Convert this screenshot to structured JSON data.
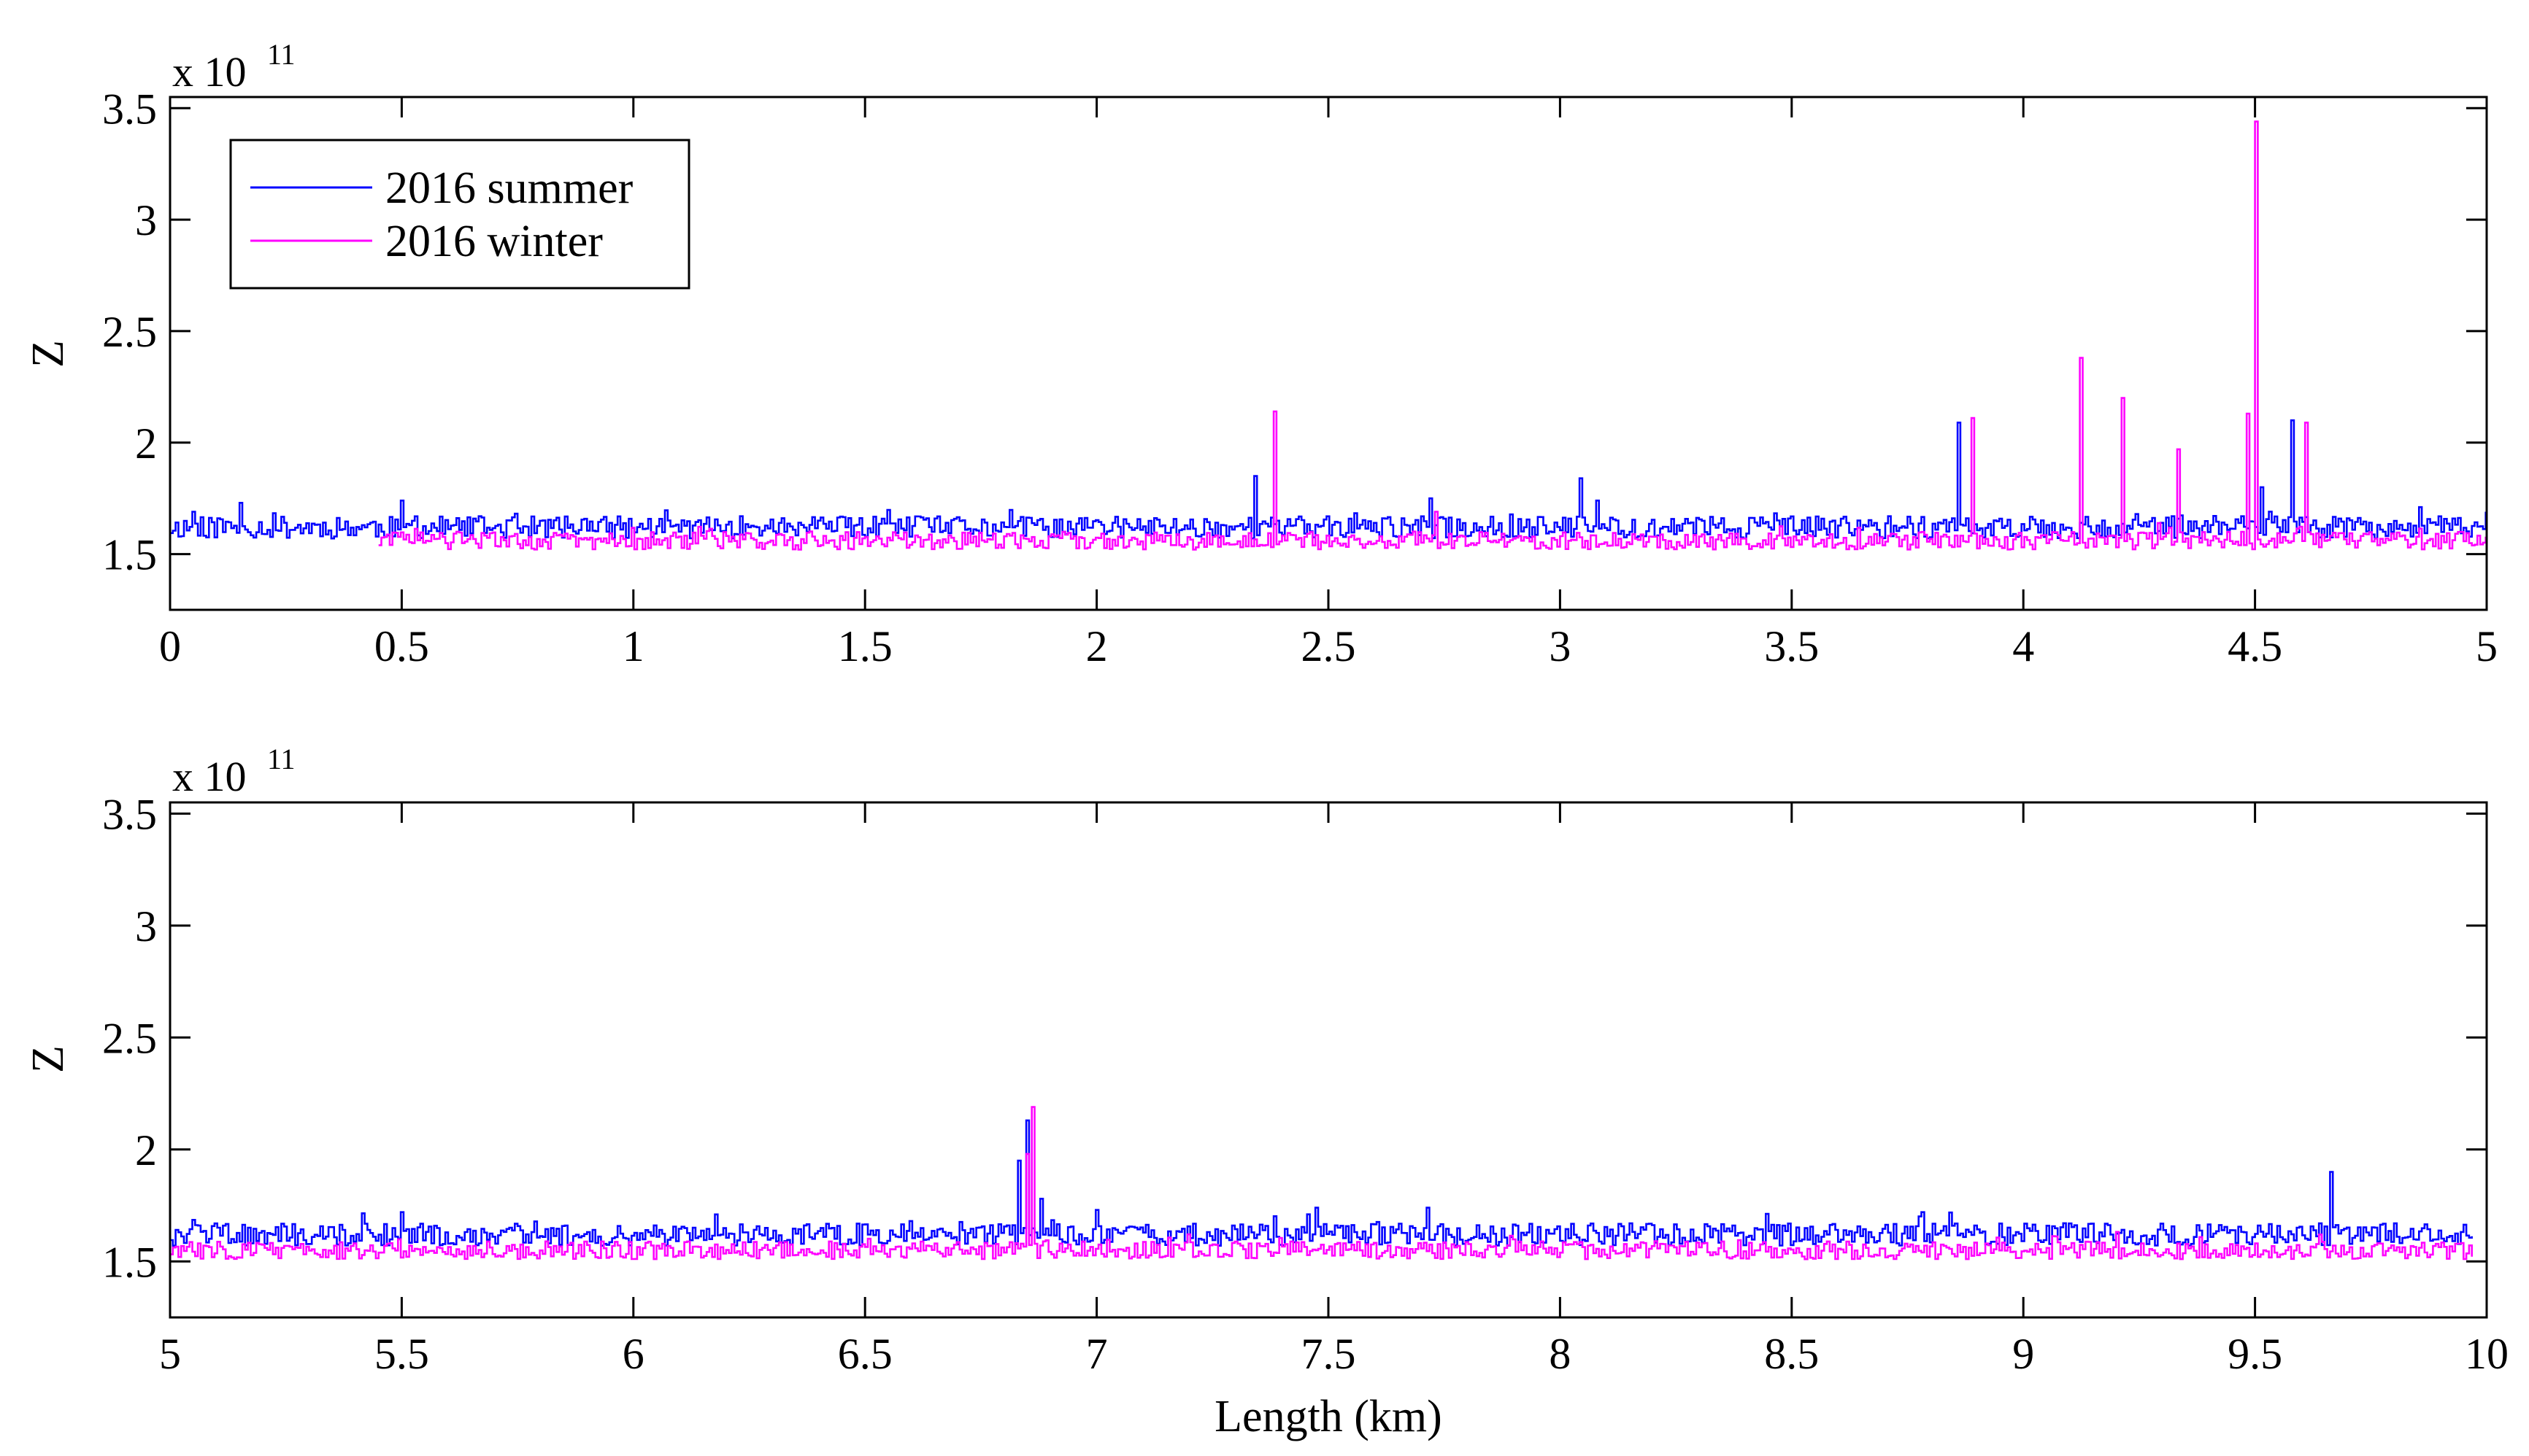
{
  "colors": {
    "summer": "#0000ff",
    "winter": "#ff00ff",
    "axes": "#000000"
  },
  "chart_data": [
    {
      "type": "line",
      "xlabel": "",
      "ylabel": "Z",
      "y_multiplier": {
        "base": "x 10",
        "exponent": "11"
      },
      "xlim": [
        0,
        5
      ],
      "ylim": [
        1.25,
        3.55
      ],
      "xticks": [
        0,
        0.5,
        1,
        1.5,
        2,
        2.5,
        3,
        3.5,
        4,
        4.5,
        5
      ],
      "xtick_labels": [
        "0",
        "0.5",
        "1",
        "1.5",
        "2",
        "2.5",
        "3",
        "3.5",
        "4",
        "4.5",
        "5"
      ],
      "yticks": [
        1.5,
        2,
        2.5,
        3,
        3.5
      ],
      "ytick_labels": [
        "1.5",
        "2",
        "2.5",
        "3",
        "3.5"
      ],
      "grid": false,
      "legend": {
        "placement": "top-left",
        "entries": [
          "2016 summer",
          "2016 winter"
        ]
      },
      "series": [
        {
          "name": "2016 summer",
          "color": "#0000ff",
          "x_range": [
            0,
            5
          ],
          "baseline": 1.62,
          "noise": 0.05,
          "seed": 11,
          "spikes": [
            {
              "x": 0.05,
              "y": 1.69
            },
            {
              "x": 0.15,
              "y": 1.73
            },
            {
              "x": 0.5,
              "y": 1.74
            },
            {
              "x": 2.34,
              "y": 1.85
            },
            {
              "x": 2.72,
              "y": 1.75
            },
            {
              "x": 3.04,
              "y": 1.84
            },
            {
              "x": 3.08,
              "y": 1.74
            },
            {
              "x": 3.86,
              "y": 2.09
            },
            {
              "x": 4.51,
              "y": 1.8
            },
            {
              "x": 4.58,
              "y": 2.1
            },
            {
              "x": 5.0,
              "y": 1.69
            }
          ]
        },
        {
          "name": "2016 winter",
          "color": "#ff00ff",
          "x_range": [
            0.45,
            5
          ],
          "baseline": 1.56,
          "noise": 0.04,
          "seed": 29,
          "spikes": [
            {
              "x": 2.38,
              "y": 2.14
            },
            {
              "x": 2.73,
              "y": 1.69
            },
            {
              "x": 3.89,
              "y": 2.11
            },
            {
              "x": 4.12,
              "y": 2.38
            },
            {
              "x": 4.21,
              "y": 2.2
            },
            {
              "x": 4.33,
              "y": 1.97
            },
            {
              "x": 4.48,
              "y": 2.13
            },
            {
              "x": 4.5,
              "y": 3.44
            },
            {
              "x": 4.61,
              "y": 2.09
            }
          ]
        }
      ]
    },
    {
      "type": "line",
      "xlabel": "Length (km)",
      "ylabel": "Z",
      "y_multiplier": {
        "base": "x 10",
        "exponent": "11"
      },
      "xlim": [
        5,
        10
      ],
      "ylim": [
        1.25,
        3.55
      ],
      "xticks": [
        5,
        5.5,
        6,
        6.5,
        7,
        7.5,
        8,
        8.5,
        9,
        9.5,
        10
      ],
      "xtick_labels": [
        "5",
        "5.5",
        "6",
        "6.5",
        "7",
        "7.5",
        "8",
        "8.5",
        "9",
        "9.5",
        "10"
      ],
      "yticks": [
        1.5,
        2,
        2.5,
        3,
        3.5
      ],
      "ytick_labels": [
        "1.5",
        "2",
        "2.5",
        "3",
        "3.5"
      ],
      "grid": false,
      "series": [
        {
          "name": "2016 summer",
          "color": "#0000ff",
          "x_range": [
            5,
            9.97
          ],
          "baseline": 1.62,
          "noise": 0.05,
          "seed": 47,
          "spikes": [
            {
              "x": 5.5,
              "y": 1.72
            },
            {
              "x": 6.83,
              "y": 1.95
            },
            {
              "x": 6.85,
              "y": 2.13
            },
            {
              "x": 6.88,
              "y": 1.78
            },
            {
              "x": 7.0,
              "y": 1.73
            },
            {
              "x": 7.47,
              "y": 1.74
            },
            {
              "x": 7.71,
              "y": 1.74
            },
            {
              "x": 8.78,
              "y": 1.72
            },
            {
              "x": 9.66,
              "y": 1.9
            }
          ]
        },
        {
          "name": "2016 winter",
          "color": "#ff00ff",
          "x_range": [
            5,
            9.97
          ],
          "baseline": 1.55,
          "noise": 0.04,
          "seed": 83,
          "spikes": [
            {
              "x": 6.86,
              "y": 2.19
            },
            {
              "x": 6.85,
              "y": 1.98
            },
            {
              "x": 9.64,
              "y": 1.62
            }
          ]
        }
      ]
    }
  ]
}
